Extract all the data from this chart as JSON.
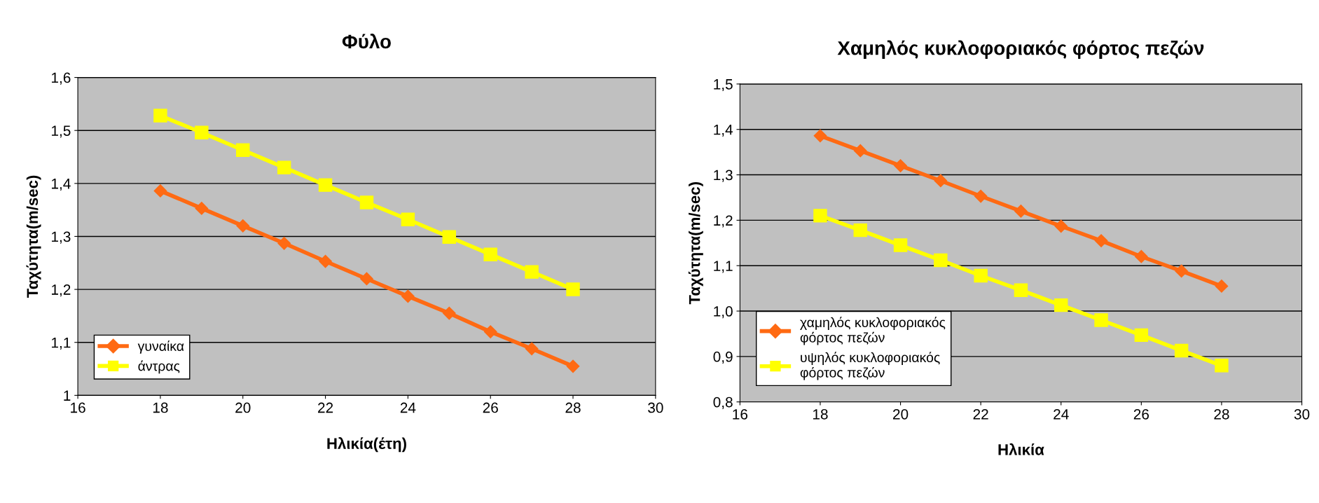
{
  "chart_data": [
    {
      "type": "line",
      "title": "Φύλο",
      "xlabel": "Ηλικία(έτη)",
      "ylabel": "Ταχύτητα(m/sec)",
      "x": [
        18,
        19,
        20,
        21,
        22,
        23,
        24,
        25,
        26,
        27,
        28
      ],
      "xlim": [
        16,
        30
      ],
      "xticks": [
        16,
        18,
        20,
        22,
        24,
        26,
        28,
        30
      ],
      "ylim": [
        1,
        1.6
      ],
      "yticks": [
        {
          "value": 1,
          "label": "1"
        },
        {
          "value": 1.1,
          "label": "1,1"
        },
        {
          "value": 1.2,
          "label": "1,2"
        },
        {
          "value": 1.3,
          "label": "1,3"
        },
        {
          "value": 1.4,
          "label": "1,4"
        },
        {
          "value": 1.5,
          "label": "1,5"
        },
        {
          "value": 1.6,
          "label": "1,6"
        }
      ],
      "grid": "y",
      "legend": "bottom left",
      "series": [
        {
          "name": "γυναίκα",
          "color": "#ff6a13",
          "marker": "diamond",
          "values": [
            1.386,
            1.353,
            1.32,
            1.287,
            1.253,
            1.22,
            1.187,
            1.155,
            1.12,
            1.088,
            1.055
          ]
        },
        {
          "name": "άντρας",
          "color": "#ffff00",
          "marker": "square",
          "values": [
            1.528,
            1.496,
            1.463,
            1.43,
            1.397,
            1.364,
            1.332,
            1.299,
            1.266,
            1.233,
            1.2
          ]
        }
      ]
    },
    {
      "type": "line",
      "title": "Χαμηλός κυκλοφοριακός φόρτος πεζών",
      "xlabel": "Ηλικία",
      "ylabel": "Ταχύτητα(m/sec)",
      "x": [
        18,
        19,
        20,
        21,
        22,
        23,
        24,
        25,
        26,
        27,
        28
      ],
      "xlim": [
        16,
        30
      ],
      "xticks": [
        16,
        18,
        20,
        22,
        24,
        26,
        28,
        30
      ],
      "ylim": [
        0.8,
        1.5
      ],
      "yticks": [
        {
          "value": 0.8,
          "label": "0,8"
        },
        {
          "value": 0.9,
          "label": "0,9"
        },
        {
          "value": 1.0,
          "label": "1,0"
        },
        {
          "value": 1.1,
          "label": "1,1"
        },
        {
          "value": 1.2,
          "label": "1,2"
        },
        {
          "value": 1.3,
          "label": "1,3"
        },
        {
          "value": 1.4,
          "label": "1,4"
        },
        {
          "value": 1.5,
          "label": "1,5"
        }
      ],
      "grid": "y",
      "legend": "bottom left",
      "series": [
        {
          "name": "χαμηλός κυκλοφοριακός φόρτος πεζών",
          "color": "#ff6a13",
          "marker": "diamond",
          "values": [
            1.386,
            1.353,
            1.32,
            1.287,
            1.253,
            1.22,
            1.187,
            1.155,
            1.12,
            1.088,
            1.055
          ]
        },
        {
          "name": "υψηλός κυκλοφοριακός φόρτος πεζών",
          "color": "#ffff00",
          "marker": "square",
          "values": [
            1.21,
            1.178,
            1.145,
            1.112,
            1.078,
            1.046,
            1.013,
            0.98,
            0.947,
            0.913,
            0.88
          ]
        }
      ]
    }
  ]
}
